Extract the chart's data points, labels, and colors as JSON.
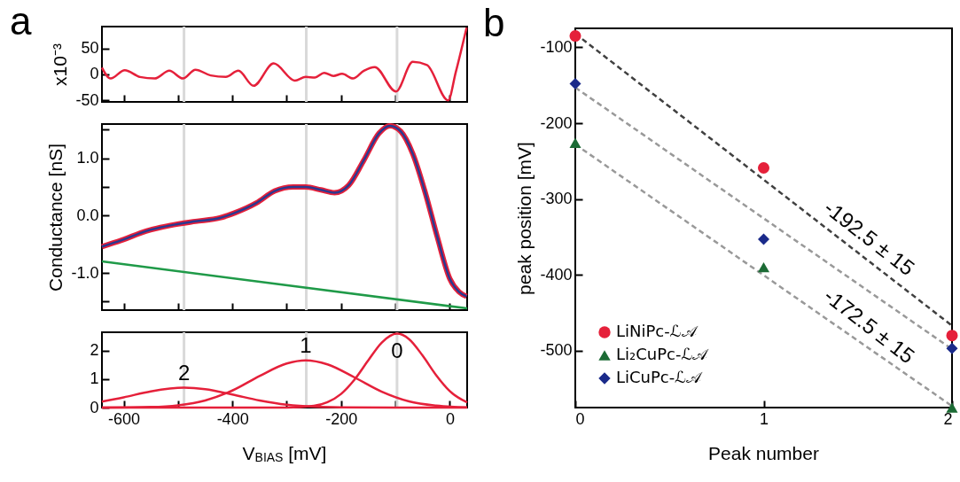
{
  "chart_data": [
    {
      "type": "line",
      "title": "a",
      "ylabel": "x10⁻³",
      "xlim": [
        -640,
        32
      ],
      "xticks": [
        -600,
        -500,
        -400,
        -300,
        -200,
        -100,
        0
      ],
      "ylim": [
        -53,
        92
      ],
      "yticks": [
        -50,
        0,
        50
      ],
      "tick_labels": "y",
      "ref_lines": [
        {
          "axis": "x",
          "value": -489,
          "color": "#d9d9d9"
        },
        {
          "axis": "x",
          "value": -264,
          "color": "#d9d9d9"
        },
        {
          "axis": "x",
          "value": -97,
          "color": "#d9d9d9"
        }
      ],
      "series": [
        {
          "color": "#e5203a",
          "x": [
            -640,
            -624,
            -598,
            -570,
            -543,
            -516,
            -491,
            -468,
            -440,
            -412,
            -389,
            -361,
            -324,
            -285,
            -265,
            -248,
            -231,
            -214,
            -198,
            -178,
            -158,
            -138,
            -99,
            -68,
            -42,
            -3,
            11,
            31
          ],
          "values": [
            13,
            -8,
            8,
            -5,
            -8,
            7,
            -8,
            9,
            -2,
            -5,
            7,
            -22,
            21,
            -12,
            -5,
            -6,
            3,
            -3,
            1,
            -8,
            7,
            14,
            -33,
            24,
            18,
            -50,
            4,
            90
          ]
        }
      ]
    },
    {
      "type": "line",
      "ylabel": "Conductance [nS]",
      "xlim": [
        -640,
        32
      ],
      "xticks": [
        -600,
        -500,
        -400,
        -300,
        -200,
        -100,
        0
      ],
      "ylim": [
        -1.65,
        1.6
      ],
      "yticks": [
        {
          "value": 1.5,
          "label": null
        },
        {
          "value": 1,
          "label": "1.0"
        },
        {
          "value": 0.5,
          "label": null
        },
        {
          "value": 0,
          "label": "0.0"
        },
        {
          "value": -0.5,
          "label": null
        },
        {
          "value": -1,
          "label": "-1.0"
        },
        {
          "value": -1.5,
          "label": null
        }
      ],
      "tick_labels": "y",
      "ref_lines": [
        {
          "axis": "x",
          "value": -489,
          "color": "#d9d9d9"
        },
        {
          "axis": "x",
          "value": -264,
          "color": "#d9d9d9"
        },
        {
          "axis": "x",
          "value": -97,
          "color": "#d9d9d9"
        }
      ],
      "series": [
        {
          "color": "#e5203a",
          "x": [
            -640,
            -604,
            -559,
            -514,
            -468,
            -423,
            -395,
            -356,
            -322,
            -288,
            -265,
            -237,
            -212,
            -186,
            -158,
            -130,
            -110,
            -90,
            -68,
            -45,
            -23,
            0,
            17,
            31
          ],
          "values": [
            -0.54,
            -0.43,
            -0.27,
            -0.17,
            -0.1,
            -0.04,
            0.05,
            0.22,
            0.43,
            0.5,
            0.5,
            0.45,
            0.4,
            0.53,
            0.97,
            1.44,
            1.57,
            1.47,
            1.08,
            0.4,
            -0.37,
            -1.1,
            -1.33,
            -1.41
          ]
        },
        {
          "color": "#2b3990",
          "x": [
            -640,
            -604,
            -559,
            -514,
            -468,
            -423,
            -395,
            -356,
            -322,
            -288,
            -265,
            -237,
            -212,
            -186,
            -158,
            -130,
            -110,
            -90,
            -68,
            -45,
            -23,
            0,
            17,
            31
          ],
          "values": [
            -0.54,
            -0.43,
            -0.27,
            -0.17,
            -0.1,
            -0.04,
            0.05,
            0.22,
            0.43,
            0.5,
            0.5,
            0.45,
            0.4,
            0.53,
            0.97,
            1.44,
            1.57,
            1.47,
            1.08,
            0.4,
            -0.37,
            -1.1,
            -1.33,
            -1.41
          ]
        },
        {
          "color": "#1f9a48",
          "x": [
            -640,
            32
          ],
          "values": [
            -0.8,
            -1.62
          ]
        }
      ]
    },
    {
      "type": "line",
      "xlabel": "V$_{BIAS}$ [mV]",
      "xlim": [
        -640,
        32
      ],
      "xticks": [
        {
          "value": -600,
          "label": "-600"
        },
        {
          "value": -500,
          "label": null
        },
        {
          "value": -400,
          "label": "-400"
        },
        {
          "value": -300,
          "label": null
        },
        {
          "value": -200,
          "label": "-200"
        },
        {
          "value": -100,
          "label": null
        },
        {
          "value": 0,
          "label": "0"
        }
      ],
      "ylim": [
        0,
        2.65
      ],
      "yticks": [
        0,
        1,
        2
      ],
      "ref_lines": [
        {
          "axis": "x",
          "value": -489,
          "color": "#d9d9d9"
        },
        {
          "axis": "x",
          "value": -264,
          "color": "#d9d9d9"
        },
        {
          "axis": "x",
          "value": -97,
          "color": "#d9d9d9"
        }
      ],
      "annotations": [
        {
          "text": "2",
          "x": -489,
          "y": 0.7
        },
        {
          "text": "1",
          "x": -265,
          "y": 1.66
        },
        {
          "text": "0",
          "x": -97,
          "y": 2.6
        }
      ],
      "series": [
        {
          "color": "#e5203a",
          "x": [
            -640,
            -300,
            -250,
            -225,
            -200,
            -175,
            -150,
            -125,
            -97,
            -75,
            -50,
            -25,
            0,
            32
          ],
          "values": [
            0,
            0,
            0.06,
            0.19,
            0.48,
            0.99,
            1.66,
            2.29,
            2.6,
            2.41,
            1.83,
            1.14,
            0.58,
            0.18
          ]
        },
        {
          "color": "#e5203a",
          "x": [
            -640,
            -550,
            -500,
            -450,
            -400,
            -350,
            -300,
            -265,
            -225,
            -175,
            -125,
            -75,
            -25,
            32
          ],
          "values": [
            0,
            0.02,
            0.08,
            0.25,
            0.6,
            1.11,
            1.55,
            1.66,
            1.52,
            1.06,
            0.56,
            0.22,
            0.07,
            0.01
          ]
        },
        {
          "color": "#e5203a",
          "x": [
            -640,
            -600,
            -550,
            -489,
            -450,
            -400,
            -350,
            -300,
            -250,
            -200,
            -100,
            32
          ],
          "values": [
            0.21,
            0.36,
            0.57,
            0.7,
            0.65,
            0.46,
            0.25,
            0.1,
            0.03,
            0.01,
            0,
            0
          ]
        }
      ]
    },
    {
      "type": "scatter",
      "title": "b",
      "xlabel": "Peak number",
      "ylabel": "peak position [mV]",
      "xlim": [
        0,
        2
      ],
      "xticks": [
        0,
        1,
        2
      ],
      "ylim": [
        -575,
        -75
      ],
      "yticks": [
        -100,
        -200,
        -300,
        -400,
        -500
      ],
      "legend": "bottom left",
      "annotations": [
        {
          "text": "-192.5 ± 15",
          "x": 1.5,
          "y": -371
        },
        {
          "text": "-172.5 ± 15",
          "x": 1.5,
          "y": -487
        }
      ],
      "series": [
        {
          "type": "line",
          "color": "#404040",
          "line_style": "dashed",
          "marker": "none",
          "x": [
            0,
            2
          ],
          "values": [
            -82,
            -467
          ]
        },
        {
          "type": "line",
          "color": "#999999",
          "line_style": "dashed",
          "marker": "none",
          "x": [
            0,
            2
          ],
          "values": [
            -153,
            -498
          ]
        },
        {
          "type": "line",
          "color": "#999999",
          "line_style": "dashed",
          "marker": "none",
          "x": [
            0,
            2
          ],
          "values": [
            -228,
            -573
          ]
        },
        {
          "name": "LiNiPc-ℒ𝒜",
          "color": "#e5203a",
          "marker": "circle",
          "x": [
            0,
            1,
            2
          ],
          "values": [
            -85,
            -259,
            -480
          ]
        },
        {
          "name": "Li₂CuPc-ℒ𝒜",
          "color": "#1c6b35",
          "marker": "triangle",
          "x": [
            0,
            1,
            2
          ],
          "values": [
            -226,
            -390,
            -575
          ]
        },
        {
          "name": "LiCuPc-ℒ𝒜",
          "color": "#1a2a8a",
          "marker": "diamond",
          "x": [
            0,
            1,
            2
          ],
          "values": [
            -148,
            -353,
            -497
          ]
        }
      ]
    }
  ]
}
